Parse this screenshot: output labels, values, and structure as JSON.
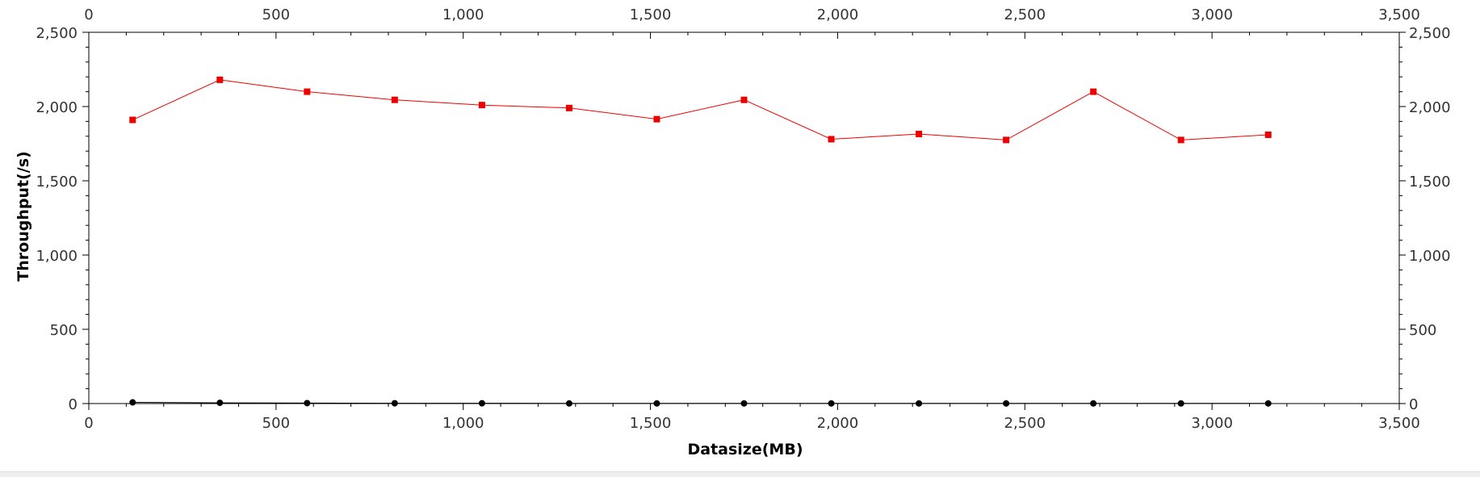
{
  "chart_data": {
    "type": "line",
    "xlabel": "Datasize(MB)",
    "ylabel": "Throughput(/s)",
    "xlim": [
      0,
      3500
    ],
    "ylim": [
      0,
      2500
    ],
    "x_ticks": [
      0,
      500,
      1000,
      1500,
      2000,
      2500,
      3000,
      3500
    ],
    "x_tick_labels": [
      "0",
      "500",
      "1,000",
      "1,500",
      "2,000",
      "2,500",
      "3,000",
      "3,500"
    ],
    "y_ticks": [
      0,
      500,
      1000,
      1500,
      2000,
      2500
    ],
    "y_tick_labels": [
      "0",
      "500",
      "1,000",
      "1,500",
      "2,000",
      "2,500"
    ],
    "axes_on": [
      "bottom",
      "top",
      "left",
      "right"
    ],
    "grid": false,
    "legend": false,
    "series": [
      {
        "color": "#ee0000",
        "marker": "square",
        "x": [
          117,
          350,
          583,
          817,
          1050,
          1283,
          1517,
          1750,
          1983,
          2217,
          2450,
          2683,
          2917,
          3150
        ],
        "y": [
          1910,
          2180,
          2100,
          2045,
          2010,
          1990,
          1915,
          2045,
          1780,
          1815,
          1775,
          2100,
          1775,
          1810
        ]
      },
      {
        "color": "#000000",
        "marker": "circle",
        "x": [
          117,
          350,
          583,
          817,
          1050,
          1283,
          1517,
          1750,
          1983,
          2217,
          2450,
          2683,
          2917,
          3150
        ],
        "y": [
          8,
          5,
          3,
          2,
          2,
          1,
          1,
          1,
          1,
          1,
          1,
          1,
          1,
          1
        ]
      }
    ]
  }
}
